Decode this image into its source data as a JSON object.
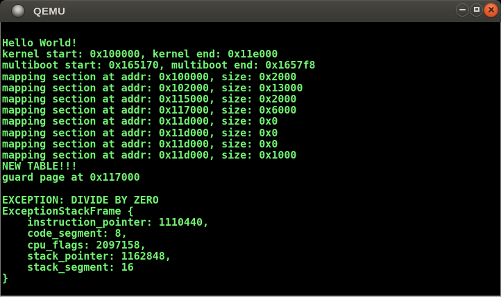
{
  "titlebar": {
    "title": "QEMU"
  },
  "colors": {
    "terminal_background": "#000000",
    "terminal_green": "#72f372",
    "titlebar_background": "#3e3d39",
    "titlebar_text": "#dad6ce",
    "close_button_orange": "#e25a2c",
    "window_border": "#b3b1ac"
  },
  "console": {
    "lines": [
      "Hello World!",
      "kernel start: 0x100000, kernel end: 0x11e000",
      "multiboot start: 0x165170, multiboot end: 0x1657f8",
      "mapping section at addr: 0x100000, size: 0x2000",
      "mapping section at addr: 0x102000, size: 0x13000",
      "mapping section at addr: 0x115000, size: 0x2000",
      "mapping section at addr: 0x117000, size: 0x6000",
      "mapping section at addr: 0x11d000, size: 0x0",
      "mapping section at addr: 0x11d000, size: 0x0",
      "mapping section at addr: 0x11d000, size: 0x0",
      "mapping section at addr: 0x11d000, size: 0x1000",
      "NEW TABLE!!!",
      "guard page at 0x117000",
      "",
      "EXCEPTION: DIVIDE BY ZERO",
      "ExceptionStackFrame {",
      "    instruction_pointer: 1110440,",
      "    code_segment: 8,",
      "    cpu_flags: 2097158,",
      "    stack_pointer: 1162848,",
      "    stack_segment: 16",
      "}"
    ]
  }
}
